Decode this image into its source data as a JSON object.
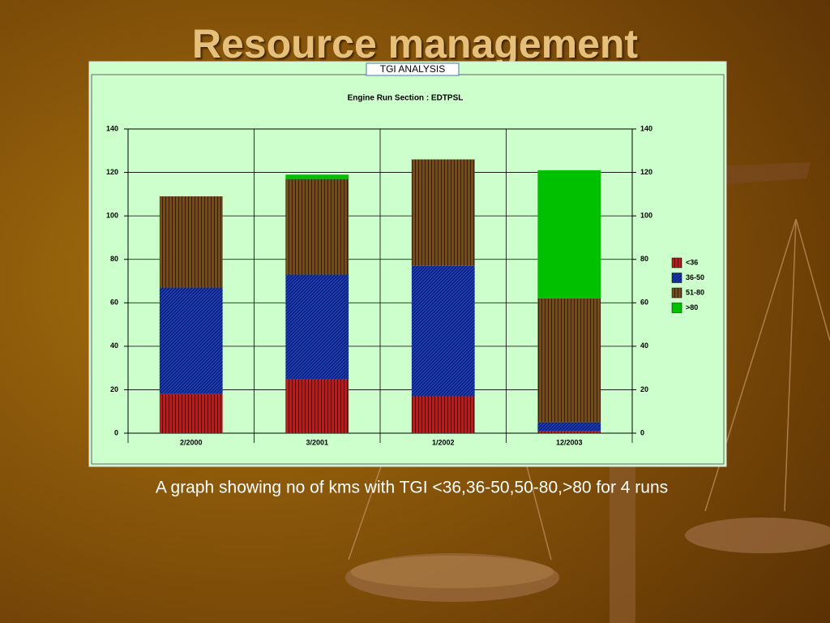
{
  "slide_title": "Resource management",
  "panel_label": "TGI ANALYSIS",
  "caption": "A graph showing  no of kms  with  TGI <36,36-50,50-80,>80 for 4 runs",
  "chart_data": {
    "type": "stacked_bar",
    "title": "Engine Run Section : EDTPSL",
    "categories": [
      "2/2000",
      "3/2001",
      "1/2002",
      "12/2003"
    ],
    "series": [
      {
        "name": "<36",
        "color": "#cc1414",
        "values": [
          18,
          25,
          17,
          1
        ]
      },
      {
        "name": "36-50",
        "color": "#1c3cb4",
        "values": [
          49,
          48,
          60,
          4
        ]
      },
      {
        "name": "51-80",
        "color": "#7a4a12",
        "values": [
          42,
          44,
          49,
          57
        ]
      },
      {
        "name": ">80",
        "color": "#00c000",
        "values": [
          0,
          2,
          0,
          59
        ]
      }
    ],
    "ylim": [
      0,
      140
    ],
    "yticks": [
      0,
      20,
      40,
      60,
      80,
      100,
      120,
      140
    ],
    "y2lim": [
      0,
      140
    ],
    "y2ticks": [
      0,
      20,
      40,
      60,
      80,
      100,
      120,
      140
    ],
    "grid": true,
    "legend": "right"
  }
}
